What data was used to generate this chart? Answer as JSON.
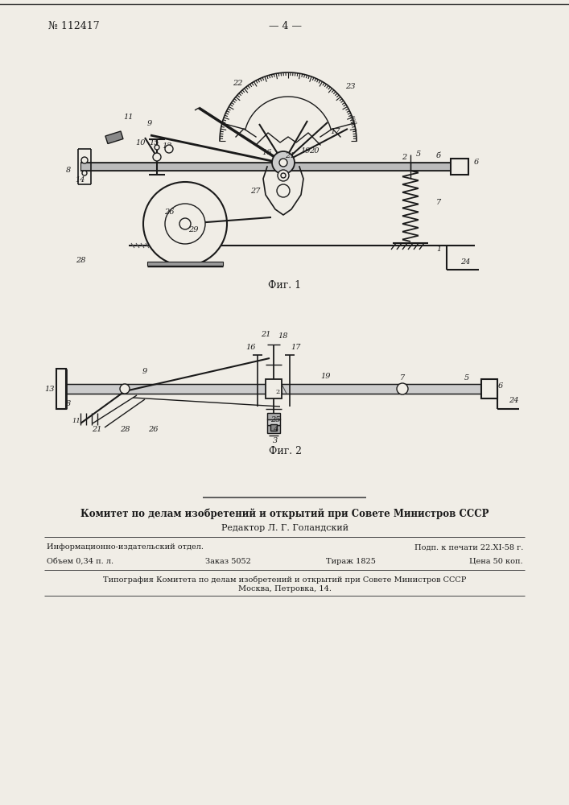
{
  "page_number": "№ 112417",
  "page_label": "— 4 —",
  "fig1_label": "Фиг. 1",
  "fig2_label": "Фиг. 2",
  "bg_color": "#f0ede6",
  "text_color": "#1a1a1a",
  "committee_text": "Комитет по делам изобретений и открытий при Совете Министров СССР",
  "editor_text": "Редактор Л. Г. Голандский",
  "info_line1_left": "Информационно-издательский отдел.",
  "info_line1_right": "Подп. к печати 22.XI-58 г.",
  "info_line2_col1": "Объем 0,34 п. л.",
  "info_line2_col2": "Заказ 5052",
  "info_line2_col3": "Тираж 1825",
  "info_line2_col4": "Цена 50 коп.",
  "typography_line1": "Типография Комитета по делам изобретений и открытий при Совете Министров СССР",
  "typography_line2": "Москва, Петровка, 14.",
  "line_color": "#1a1a1a"
}
